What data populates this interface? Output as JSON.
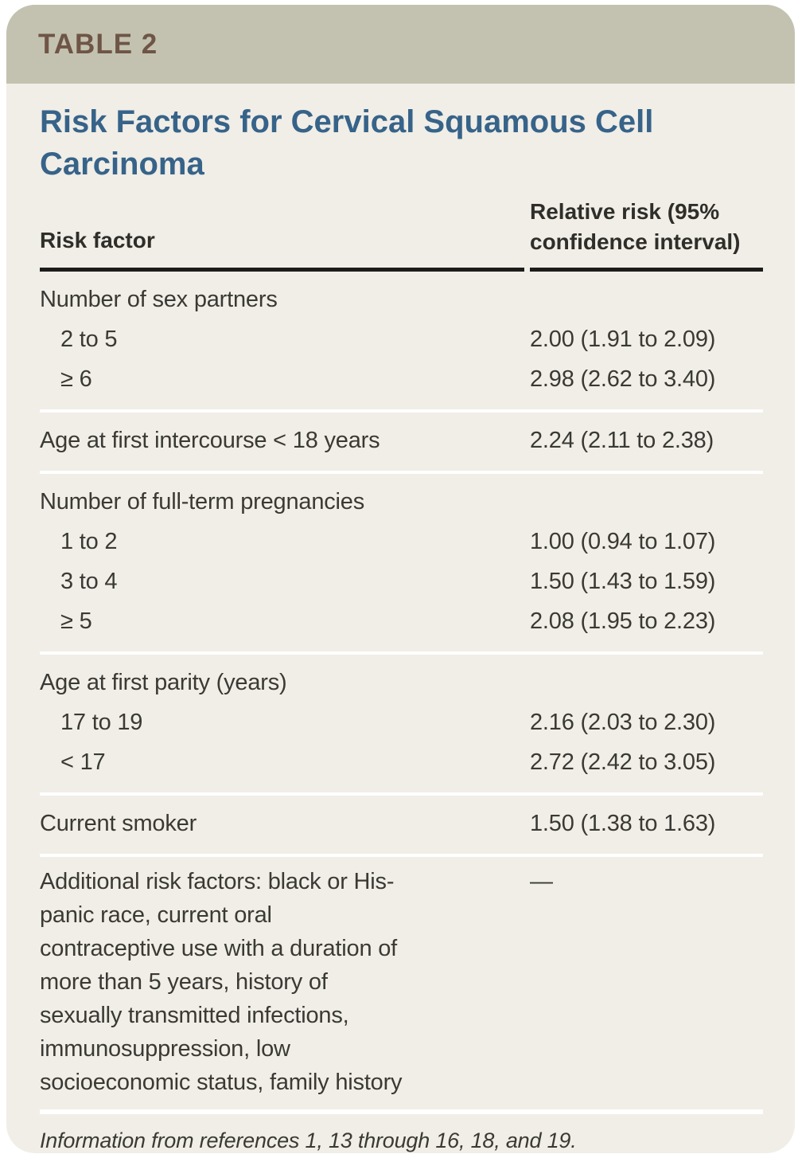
{
  "header": {
    "table_label": "TABLE 2"
  },
  "title": "Risk Factors for Cervical Squamous Cell Carcinoma",
  "table": {
    "columns": [
      "Risk factor",
      "Relative risk (95% confidence interval)"
    ],
    "sections": [
      {
        "rows": [
          {
            "label": "Number of sex partners",
            "value": ""
          },
          {
            "label": "2 to 5",
            "value": "2.00 (1.91 to 2.09)"
          },
          {
            "label": "≥ 6",
            "value": "2.98 (2.62 to 3.40)"
          }
        ]
      },
      {
        "rows": [
          {
            "label": "Age at first intercourse < 18 years",
            "value": "2.24 (2.11 to 2.38)"
          }
        ]
      },
      {
        "rows": [
          {
            "label": "Number of full-term pregnancies",
            "value": ""
          },
          {
            "label": "1 to 2",
            "value": "1.00 (0.94 to 1.07)"
          },
          {
            "label": "3 to 4",
            "value": "1.50 (1.43 to 1.59)"
          },
          {
            "label": "≥ 5",
            "value": "2.08 (1.95 to 2.23)"
          }
        ]
      },
      {
        "rows": [
          {
            "label": "Age at first parity (years)",
            "value": ""
          },
          {
            "label": "17 to 19",
            "value": "2.16 (2.03 to 2.30)"
          },
          {
            "label": "< 17",
            "value": "2.72 (2.42 to 3.05)"
          }
        ]
      },
      {
        "rows": [
          {
            "label": "Current smoker",
            "value": "1.50 (1.38 to 1.63)"
          }
        ]
      },
      {
        "rows": [
          {
            "label": "Additional risk factors: black or His­panic race, current oral contraceptive use with a duration of more than 5 years, history of sexually transmitted infections, immunosuppression, low socioeconomic status, family history",
            "value": "—"
          }
        ]
      }
    ]
  },
  "footnote": "Information from references 1, 13 through 16, 18, and 19.",
  "colors": {
    "header_bar": "#c3c2b0",
    "card_background": "#f0eee7",
    "table_label": "#6f5546",
    "title": "#376389",
    "body_text": "#3a3933",
    "header_rule": "#1d1c1a",
    "section_divider": "#ffffff"
  }
}
